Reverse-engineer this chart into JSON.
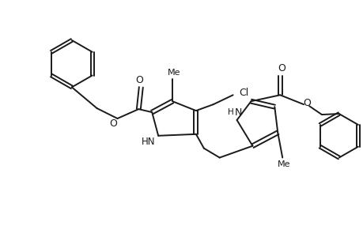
{
  "background_color": "#ffffff",
  "line_color": "#1a1a1a",
  "line_width": 1.4,
  "figsize": [
    4.6,
    3.0
  ],
  "dpi": 100,
  "xlim": [
    0,
    460
  ],
  "ylim": [
    0,
    300
  ]
}
